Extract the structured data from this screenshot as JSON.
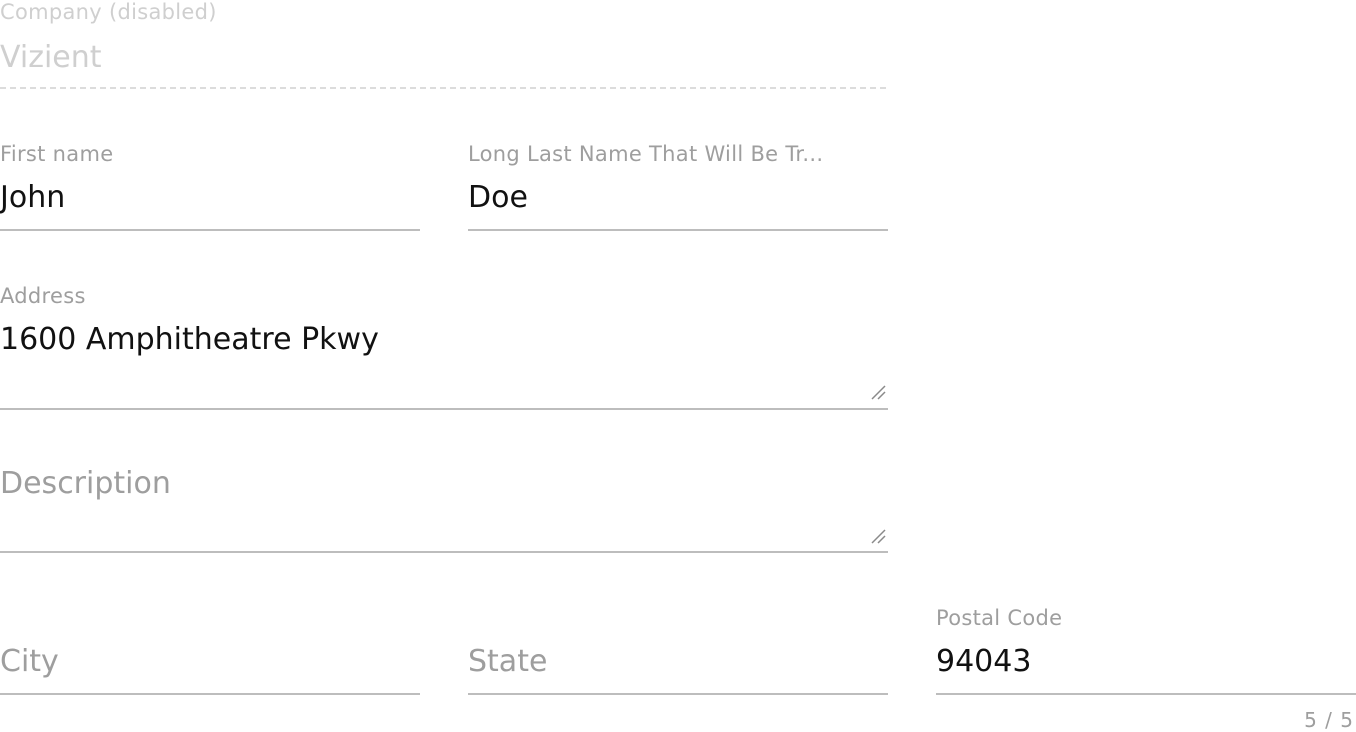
{
  "company": {
    "label": "Company (disabled)",
    "value": "Vizient"
  },
  "first_name": {
    "label": "First name",
    "value": "John"
  },
  "last_name": {
    "label": "Long Last Name That Will Be Tr...",
    "value": "Doe"
  },
  "address": {
    "label": "Address",
    "value": "1600 Amphitheatre Pkwy"
  },
  "description": {
    "placeholder": "Description"
  },
  "city": {
    "placeholder": "City"
  },
  "state": {
    "placeholder": "State"
  },
  "postal_code": {
    "label": "Postal Code",
    "value": "94043",
    "counter": "5 / 5"
  },
  "icons": {
    "textarea_resize": "resize-handle-icon"
  },
  "colors": {
    "label": "#9e9e9e",
    "disabled": "#cfcfcf",
    "text": "#111111",
    "underline": "#bdbdbd"
  }
}
